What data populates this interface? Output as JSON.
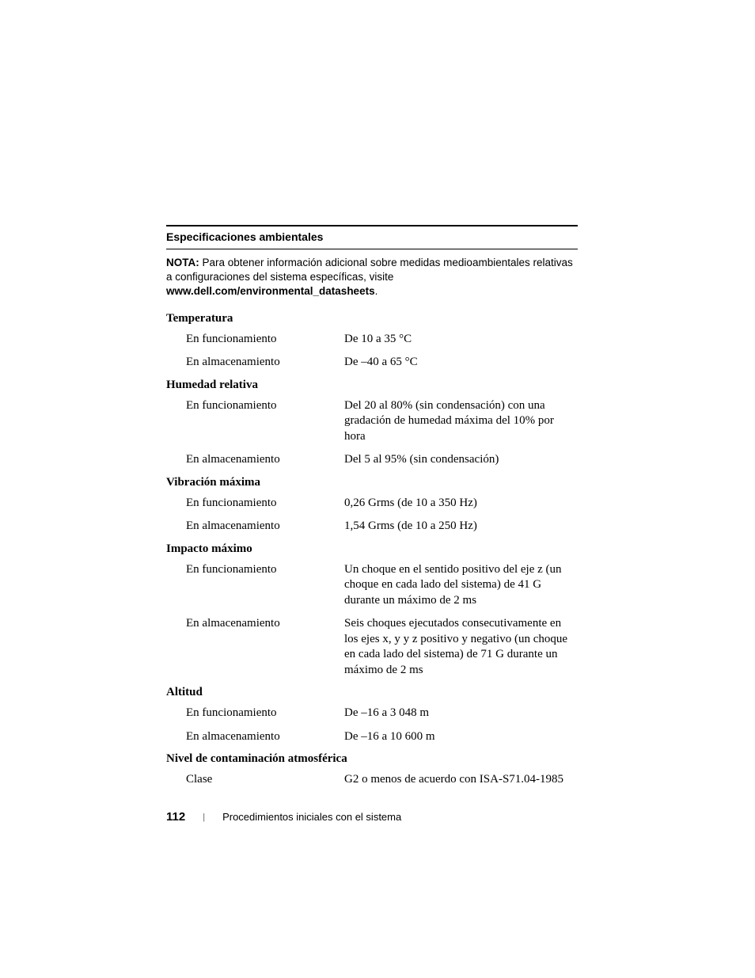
{
  "section": {
    "header": "Especificaciones ambientales",
    "nota": {
      "label": "NOTA:",
      "text": " Para obtener información adicional sobre medidas medioambientales relativas a configuraciones del sistema específicas, visite ",
      "link": "www.dell.com/environmental_datasheets",
      "suffix": "."
    },
    "groups": [
      {
        "title": "Temperatura",
        "rows": [
          {
            "label": "En funcionamiento",
            "value": "De 10 a 35 °C"
          },
          {
            "label": "En almacenamiento",
            "value": "De –40 a 65 °C"
          }
        ]
      },
      {
        "title": "Humedad relativa",
        "rows": [
          {
            "label": "En funcionamiento",
            "value": "Del 20 al 80% (sin condensación) con una gradación de humedad máxima del 10% por hora"
          },
          {
            "label": "En almacenamiento",
            "value": "Del 5 al 95% (sin condensación)"
          }
        ]
      },
      {
        "title": "Vibración máxima",
        "rows": [
          {
            "label": "En funcionamiento",
            "value": "0,26 Grms (de 10 a 350 Hz)"
          },
          {
            "label": "En almacenamiento",
            "value": "1,54 Grms (de 10 a 250 Hz)"
          }
        ]
      },
      {
        "title": "Impacto máximo",
        "rows": [
          {
            "label": "En funcionamiento",
            "value": "Un choque en el sentido positivo del eje z (un choque en cada lado del sistema) de 41 G durante un máximo de 2 ms"
          },
          {
            "label": "En almacenamiento",
            "value": "Seis choques ejecutados consecutivamente en los ejes x, y y z positivo y negativo (un choque en cada lado del sistema) de 71 G durante un máximo de 2 ms"
          }
        ]
      },
      {
        "title": "Altitud",
        "rows": [
          {
            "label": "En funcionamiento",
            "value": "De –16 a 3 048 m"
          },
          {
            "label": "En almacenamiento",
            "value": "De –16 a 10 600 m"
          }
        ]
      },
      {
        "title": "Nivel de contaminación atmosférica",
        "rows": [
          {
            "label": "Clase",
            "value": "G2 o menos de acuerdo con ISA-S71.04-1985"
          }
        ]
      }
    ]
  },
  "footer": {
    "pageNumber": "112",
    "divider": "|",
    "text": "Procedimientos iniciales con el sistema"
  }
}
